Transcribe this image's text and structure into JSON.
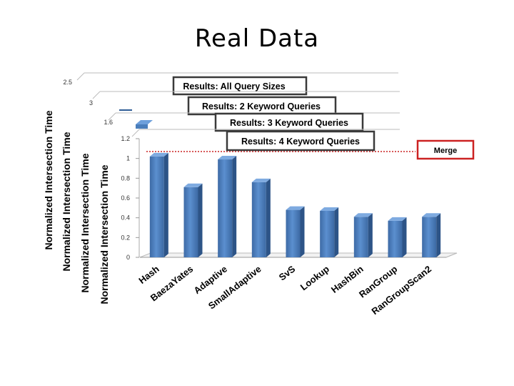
{
  "page": {
    "title": "Real Data"
  },
  "chart_data": {
    "type": "bar",
    "panels": [
      {
        "title": "Results: All Query Sizes",
        "ylabel": "Normalized Intersection Time",
        "ymax_label": "2.5"
      },
      {
        "title": "Results: 2 Keyword Queries",
        "ylabel": "Normalized Intersection Time",
        "ymax_label": "3"
      },
      {
        "title": "Results: 3 Keyword Queries",
        "ylabel": "Normalized Intersection Time",
        "ymax_label": "1.6"
      }
    ],
    "title": "Results: 4 Keyword Queries",
    "ylabel": "Normalized Intersection Time",
    "categories": [
      "Hash",
      "BaezaYates",
      "Adaptive",
      "SmallAdaptive",
      "SvS",
      "Lookup",
      "HashBin",
      "RanGroup",
      "RanGroupScan2"
    ],
    "values": [
      1.02,
      0.71,
      0.99,
      0.76,
      0.48,
      0.47,
      0.41,
      0.37,
      0.41
    ],
    "yticks": [
      "0",
      "0.2",
      "0.4",
      "0.6",
      "0.8",
      "1",
      "1.2"
    ],
    "ylim": [
      0,
      1.2
    ],
    "reference_line": {
      "label": "Merge",
      "value": 1.07,
      "color": "#cc2222"
    },
    "bar_color": "#4a7ebb",
    "grid": false
  }
}
